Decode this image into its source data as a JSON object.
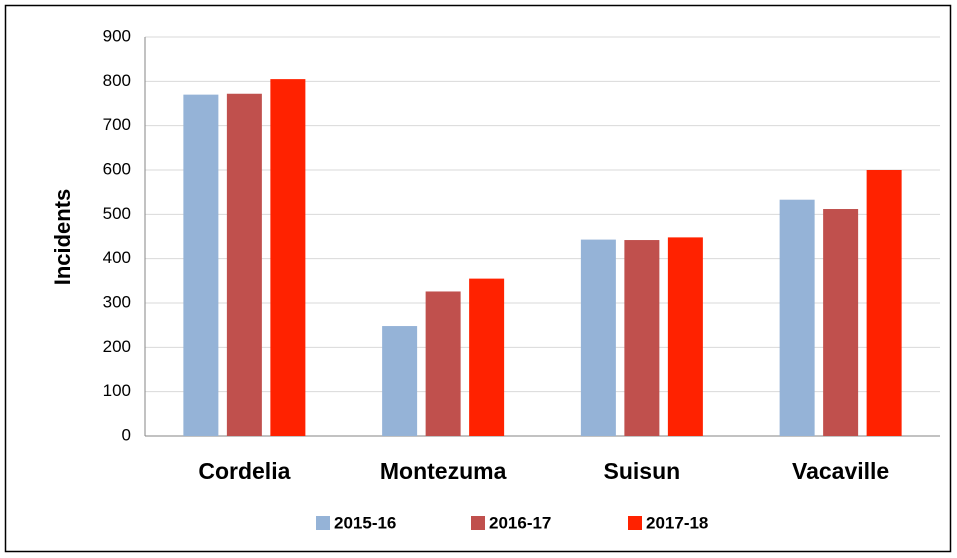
{
  "chart_data": {
    "type": "bar",
    "y_label": "Incidents",
    "categories": [
      "Cordelia",
      "Montezuma",
      "Suisun",
      "Vacaville"
    ],
    "series": [
      {
        "name": "2015-16",
        "color": "#95b3d7",
        "values": [
          770,
          248,
          443,
          533
        ]
      },
      {
        "name": "2016-17",
        "color": "#c0504d",
        "values": [
          772,
          326,
          442,
          512
        ]
      },
      {
        "name": "2017-18",
        "color": "#ff2200",
        "values": [
          805,
          355,
          448,
          600
        ]
      }
    ],
    "ylim": [
      0,
      900
    ],
    "yticks": [
      0,
      100,
      200,
      300,
      400,
      500,
      600,
      700,
      800,
      900
    ],
    "grid": true
  }
}
